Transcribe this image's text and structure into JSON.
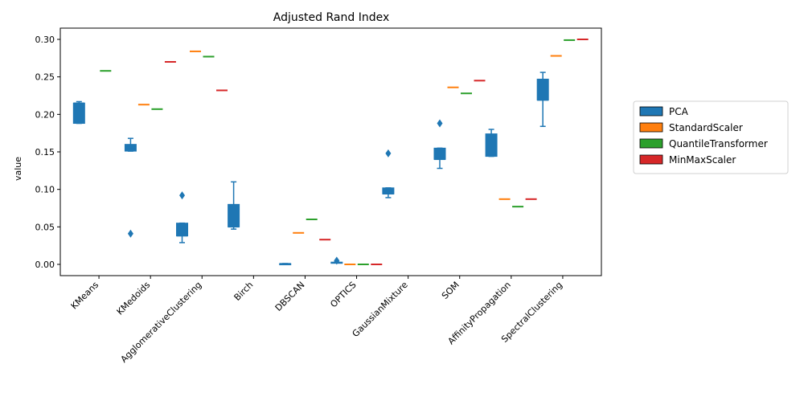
{
  "chart_data": {
    "type": "box",
    "title": "Adjusted Rand Index",
    "xlabel": "",
    "ylabel": "value",
    "ylim": [
      -0.015,
      0.315
    ],
    "yticks": [
      0.0,
      0.05,
      0.1,
      0.15,
      0.2,
      0.25,
      0.3
    ],
    "ytick_labels": [
      "0.00",
      "0.05",
      "0.10",
      "0.15",
      "0.20",
      "0.25",
      "0.30"
    ],
    "grid": false,
    "legend_position": "right",
    "categories": [
      "KMeans",
      "KMedoids",
      "AgglomerativeClustering",
      "Birch",
      "DBSCAN",
      "OPTICS",
      "GaussianMixture",
      "SOM",
      "AffinityPropagation",
      "SpectralClustering"
    ],
    "series": [
      {
        "name": "PCA",
        "color": "#1f77b4",
        "boxes": [
          {
            "whislo": 0.188,
            "q1": 0.188,
            "med": 0.215,
            "q3": 0.215,
            "whishi": 0.217,
            "fliers": []
          },
          {
            "whislo": 0.151,
            "q1": 0.151,
            "med": 0.156,
            "q3": 0.16,
            "whishi": 0.168,
            "fliers": [
              0.041
            ]
          },
          {
            "whislo": 0.029,
            "q1": 0.038,
            "med": 0.038,
            "q3": 0.055,
            "whishi": 0.055,
            "fliers": [
              0.092
            ]
          },
          {
            "whislo": 0.047,
            "q1": 0.05,
            "med": 0.05,
            "q3": 0.08,
            "whishi": 0.11,
            "fliers": []
          },
          {
            "whislo": 0.001,
            "q1": 0.001,
            "med": 0.001,
            "q3": 0.001,
            "whishi": 0.001,
            "fliers": []
          },
          {
            "whislo": 0.002,
            "q1": 0.002,
            "med": 0.002,
            "q3": 0.003,
            "whishi": 0.003,
            "fliers": [
              0.005
            ]
          },
          {
            "whislo": 0.089,
            "q1": 0.094,
            "med": 0.094,
            "q3": 0.102,
            "whishi": 0.102,
            "fliers": [
              0.148
            ]
          },
          {
            "whislo": 0.128,
            "q1": 0.14,
            "med": 0.14,
            "q3": 0.155,
            "whishi": 0.155,
            "fliers": [
              0.188
            ]
          },
          {
            "whislo": 0.144,
            "q1": 0.144,
            "med": 0.145,
            "q3": 0.174,
            "whishi": 0.18,
            "fliers": []
          },
          {
            "whislo": 0.184,
            "q1": 0.219,
            "med": 0.219,
            "q3": 0.247,
            "whishi": 0.256,
            "fliers": []
          }
        ]
      },
      {
        "name": "StandardScaler",
        "color": "#ff7f0e",
        "values": [
          null,
          0.213,
          0.284,
          null,
          0.042,
          0.0,
          null,
          0.236,
          0.087,
          0.278
        ]
      },
      {
        "name": "QuantileTransformer",
        "color": "#2ca02c",
        "values": [
          0.258,
          0.207,
          0.277,
          null,
          0.06,
          0.0,
          null,
          0.228,
          0.077,
          0.299
        ]
      },
      {
        "name": "MinMaxScaler",
        "color": "#d62728",
        "values": [
          null,
          0.27,
          0.232,
          null,
          0.033,
          0.0,
          null,
          0.245,
          0.087,
          0.3
        ]
      }
    ]
  }
}
